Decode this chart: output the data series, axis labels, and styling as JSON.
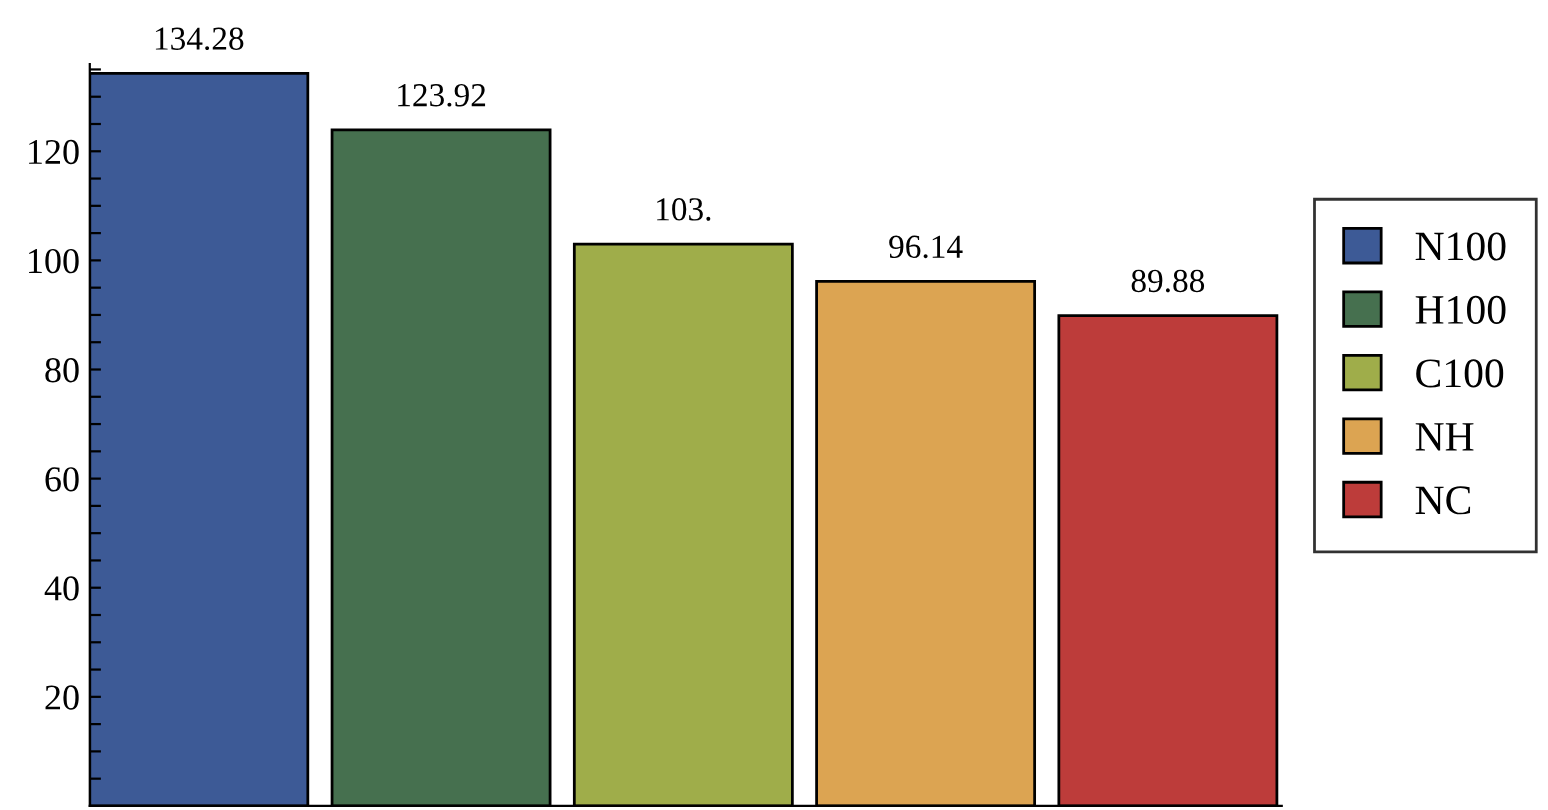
{
  "chart_data": {
    "type": "bar",
    "categories": [
      null,
      null,
      null,
      null,
      null
    ],
    "series": [
      {
        "name": "N100",
        "color": "#3d5a96",
        "values": [
          134.28,
          null,
          null,
          null,
          null
        ],
        "value_labels": [
          "134.28",
          null,
          null,
          null,
          null
        ]
      },
      {
        "name": "H100",
        "color": "#46704f",
        "values": [
          null,
          123.92,
          null,
          null,
          null
        ],
        "value_labels": [
          null,
          "123.92",
          null,
          null,
          null
        ]
      },
      {
        "name": "C100",
        "color": "#9fad4a",
        "values": [
          null,
          null,
          103,
          null,
          null
        ],
        "value_labels": [
          null,
          null,
          "103.",
          null,
          null
        ]
      },
      {
        "name": "NH",
        "color": "#dca452",
        "values": [
          null,
          null,
          null,
          96.14,
          null
        ],
        "value_labels": [
          null,
          null,
          null,
          "96.14",
          null
        ]
      },
      {
        "name": "NC",
        "color": "#bd3c3a",
        "values": [
          null,
          null,
          null,
          null,
          89.88
        ],
        "value_labels": [
          null,
          null,
          null,
          null,
          "89.88"
        ]
      }
    ],
    "ylim": [
      0,
      136
    ],
    "yticks": [
      {
        "value": 5,
        "label": null
      },
      {
        "value": 10,
        "label": null
      },
      {
        "value": 15,
        "label": null
      },
      20,
      {
        "value": 25,
        "label": null
      },
      {
        "value": 30,
        "label": null
      },
      {
        "value": 35,
        "label": null
      },
      40,
      {
        "value": 45,
        "label": null
      },
      {
        "value": 50,
        "label": null
      },
      {
        "value": 55,
        "label": null
      },
      60,
      {
        "value": 65,
        "label": null
      },
      {
        "value": 70,
        "label": null
      },
      {
        "value": 75,
        "label": null
      },
      80,
      {
        "value": 85,
        "label": null
      },
      {
        "value": 90,
        "label": null
      },
      {
        "value": 95,
        "label": null
      },
      100,
      {
        "value": 105,
        "label": null
      },
      {
        "value": 110,
        "label": null
      },
      {
        "value": 115,
        "label": null
      },
      120,
      {
        "value": 125,
        "label": null
      },
      {
        "value": 130,
        "label": null
      },
      {
        "value": 135,
        "label": null
      }
    ],
    "grid": false,
    "legend": "right"
  }
}
